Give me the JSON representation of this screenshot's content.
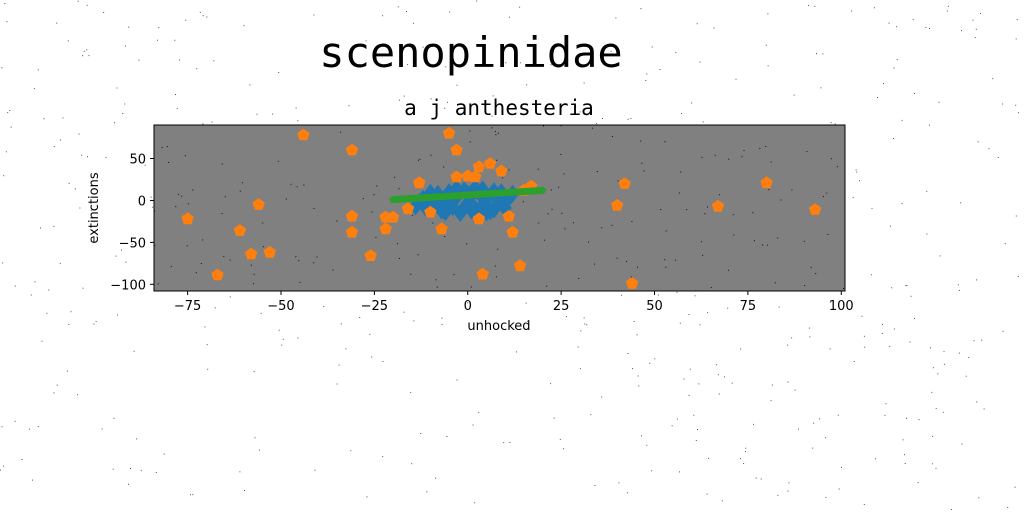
{
  "colors": {
    "plot_background": "#808080",
    "series_blue": "#1f77b4",
    "series_orange": "#ff7f0e",
    "series_green": "#2ca02c"
  },
  "chart_data": {
    "type": "scatter",
    "suptitle": "scenopinidae",
    "title": "a j anthesteria",
    "xlabel": "unhocked",
    "ylabel": "extinctions",
    "xlim": [
      -84,
      101
    ],
    "ylim": [
      -108,
      90
    ],
    "xticks": [
      -75,
      -50,
      -25,
      0,
      25,
      50,
      75,
      100
    ],
    "yticks": [
      -100,
      -50,
      0,
      50
    ],
    "grid": false,
    "legend": "none",
    "series": [
      {
        "marker": "diamond",
        "color": "#1f77b4",
        "points": [
          [
            -14,
            -7
          ],
          [
            -12,
            2
          ],
          [
            -11,
            -10
          ],
          [
            -10,
            5
          ],
          [
            -9,
            -4
          ],
          [
            -8,
            8
          ],
          [
            -7,
            -12
          ],
          [
            -6,
            0
          ],
          [
            -5,
            10
          ],
          [
            -4,
            -8
          ],
          [
            -3,
            4
          ],
          [
            -2,
            -15
          ],
          [
            -1,
            12
          ],
          [
            0,
            -3
          ],
          [
            1,
            6
          ],
          [
            2,
            -10
          ],
          [
            3,
            9
          ],
          [
            4,
            -6
          ],
          [
            5,
            2
          ],
          [
            6,
            -13
          ],
          [
            7,
            11
          ],
          [
            8,
            -2
          ],
          [
            9,
            5
          ],
          [
            10,
            -9
          ],
          [
            11,
            3
          ],
          [
            12,
            8
          ],
          [
            -13,
            -2
          ],
          [
            -6,
            -14
          ],
          [
            -3,
            14
          ],
          [
            1,
            -12
          ],
          [
            4,
            13
          ],
          [
            7,
            -11
          ],
          [
            -8,
            -6
          ],
          [
            -1,
            -9
          ],
          [
            2,
            15
          ],
          [
            5,
            -14
          ],
          [
            9,
            10
          ],
          [
            -10,
            9
          ],
          [
            0,
            8
          ],
          [
            3,
            -16
          ]
        ]
      },
      {
        "marker": "pentagon",
        "color": "#ff7f0e",
        "points": [
          [
            -75,
            -22
          ],
          [
            -67,
            -89
          ],
          [
            -61,
            -36
          ],
          [
            -58,
            -64
          ],
          [
            -56,
            -5
          ],
          [
            -53,
            -62
          ],
          [
            -44,
            78
          ],
          [
            -31,
            60
          ],
          [
            -31,
            -19
          ],
          [
            -31,
            -38
          ],
          [
            -26,
            -66
          ],
          [
            -22,
            -34
          ],
          [
            -22,
            -20
          ],
          [
            -20,
            -20
          ],
          [
            -16,
            -10
          ],
          [
            -13,
            21
          ],
          [
            -10,
            -14
          ],
          [
            -7,
            -34
          ],
          [
            -5,
            80
          ],
          [
            -3,
            60
          ],
          [
            -3,
            28
          ],
          [
            0,
            29
          ],
          [
            2,
            28
          ],
          [
            3,
            40
          ],
          [
            3,
            -22
          ],
          [
            4,
            -88
          ],
          [
            6,
            44
          ],
          [
            9,
            35
          ],
          [
            11,
            -19
          ],
          [
            12,
            -38
          ],
          [
            14,
            -78
          ],
          [
            15,
            12
          ],
          [
            17,
            17
          ],
          [
            40,
            -6
          ],
          [
            42,
            20
          ],
          [
            44,
            -99
          ],
          [
            67,
            -7
          ],
          [
            80,
            21
          ],
          [
            93,
            -11
          ]
        ]
      },
      {
        "marker": "line",
        "color": "#2ca02c",
        "points": [
          [
            -20,
            1
          ],
          [
            20,
            12
          ]
        ]
      }
    ]
  }
}
